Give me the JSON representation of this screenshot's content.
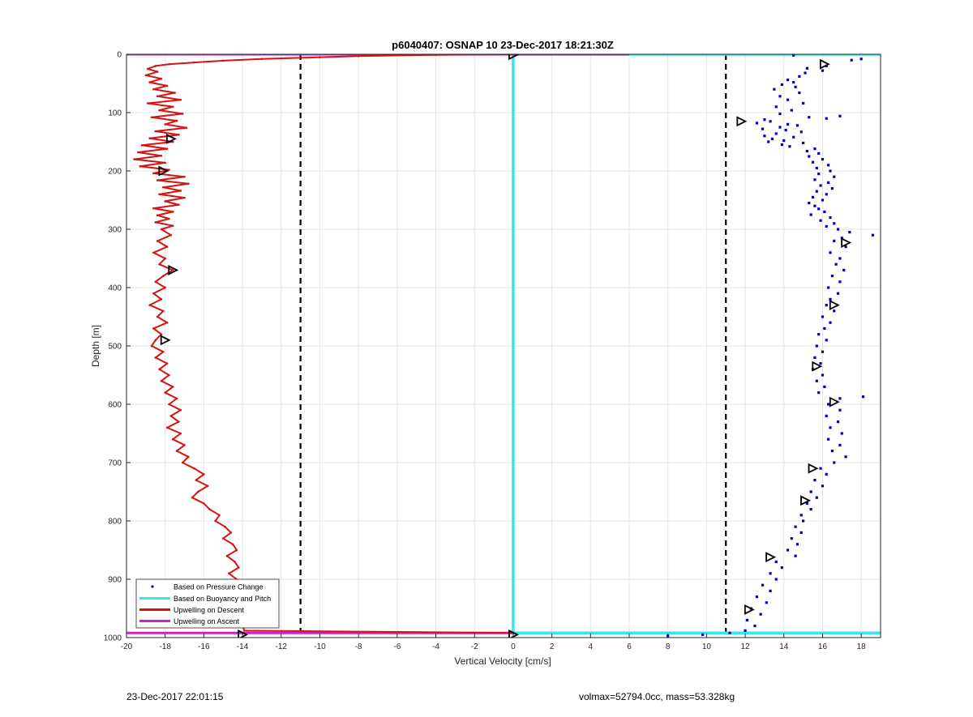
{
  "footer": {
    "timestamp": "23-Dec-2017 22:01:15",
    "vol_mass": "volmax=52794.0cc, mass=53.328kg"
  },
  "colors": {
    "pressure": "#0000cc",
    "buoyancy": "#33e6f0",
    "descent": "#d41414",
    "ascent": "#cc22cc",
    "grid": "#e6e6e6",
    "threshold": "#000000"
  },
  "chart_data": {
    "type": "scatter",
    "title": "p6040407: OSNAP 10 23-Dec-2017 18:21:30Z",
    "xlabel": "Vertical Velocity [cm/s]",
    "ylabel": "Depth [m]",
    "xlim": [
      -20,
      19
    ],
    "ylim": [
      0,
      1000
    ],
    "y_reversed": true,
    "grid": true,
    "x_ticks": [
      -20,
      -18,
      -16,
      -14,
      -12,
      -10,
      -8,
      -6,
      -4,
      -2,
      0,
      2,
      4,
      6,
      8,
      10,
      12,
      14,
      16,
      18
    ],
    "y_ticks": [
      0,
      100,
      200,
      300,
      400,
      500,
      600,
      700,
      800,
      900,
      1000
    ],
    "legend_position": "bottom-left",
    "legend": [
      {
        "label": "Based on Pressure Change",
        "style": "dot",
        "color": "#0000cc"
      },
      {
        "label": "Based on Buoyancy and Pitch",
        "style": "line",
        "color": "#33e6f0"
      },
      {
        "label": "Upwelling on Descent",
        "style": "line",
        "color": "#d41414"
      },
      {
        "label": "Upwelling on Ascent",
        "style": "line",
        "color": "#cc22cc"
      }
    ],
    "threshold_lines": [
      -11,
      11
    ],
    "series": [
      {
        "name": "Based on Pressure Change",
        "style": "points",
        "depth": [
          2,
          8,
          10,
          20,
          24,
          28,
          32,
          38,
          44,
          48,
          52,
          56,
          60,
          66,
          72,
          78,
          84,
          90,
          96,
          102,
          106,
          108,
          110,
          112,
          115,
          118,
          120,
          122,
          125,
          128,
          130,
          133,
          136,
          140,
          142,
          145,
          148,
          150,
          152,
          155,
          158,
          162,
          166,
          170,
          175,
          180,
          185,
          190,
          195,
          200,
          205,
          210,
          215,
          220,
          225,
          230,
          235,
          240,
          245,
          250,
          255,
          260,
          265,
          270,
          275,
          280,
          285,
          290,
          295,
          300,
          305,
          310,
          315,
          320,
          330,
          340,
          350,
          360,
          370,
          380,
          390,
          400,
          410,
          420,
          430,
          440,
          450,
          460,
          470,
          480,
          490,
          500,
          510,
          520,
          530,
          540,
          550,
          560,
          570,
          580,
          587,
          590,
          600,
          610,
          620,
          630,
          640,
          650,
          660,
          670,
          680,
          690,
          700,
          710,
          720,
          730,
          740,
          750,
          760,
          770,
          780,
          790,
          800,
          810,
          820,
          830,
          840,
          850,
          860,
          870,
          880,
          890,
          900,
          910,
          920,
          930,
          940,
          950,
          960,
          970,
          980,
          988,
          992,
          995,
          997
        ],
        "velocity": [
          14.5,
          18,
          17.5,
          16.2,
          15.2,
          16.0,
          15.1,
          14.8,
          14.2,
          14.5,
          13.9,
          14.6,
          13.5,
          14.8,
          13.8,
          14.2,
          15.0,
          13.6,
          14.4,
          13.8,
          16.9,
          15.3,
          16.2,
          13.0,
          13.3,
          12.6,
          14.2,
          14.7,
          13.8,
          12.9,
          14.1,
          14.9,
          13.6,
          13.0,
          14.5,
          13.4,
          14.0,
          13.2,
          15.0,
          13.9,
          14.3,
          15.6,
          15.2,
          15.8,
          15.3,
          16.0,
          15.5,
          16.3,
          15.7,
          16.4,
          15.8,
          16.6,
          15.6,
          16.3,
          15.9,
          16.5,
          15.7,
          16.2,
          15.5,
          16.0,
          15.3,
          15.6,
          15.8,
          16.1,
          15.4,
          16.4,
          15.9,
          16.6,
          16.2,
          16.8,
          17.4,
          18.6,
          17.0,
          16.6,
          17.2,
          16.4,
          16.9,
          16.7,
          17.1,
          16.5,
          16.9,
          16.3,
          16.8,
          16.4,
          16.2,
          16.6,
          16.0,
          16.4,
          16.1,
          15.8,
          16.2,
          15.7,
          16.0,
          15.6,
          15.9,
          15.5,
          16.0,
          15.7,
          16.1,
          15.8,
          18.1,
          16.9,
          16.3,
          16.9,
          16.2,
          16.8,
          16.4,
          17.0,
          16.3,
          16.9,
          16.5,
          17.2,
          16.6,
          15.9,
          16.2,
          15.6,
          16.0,
          15.4,
          15.7,
          15.2,
          15.4,
          14.9,
          15.0,
          14.6,
          14.9,
          14.4,
          14.7,
          14.2,
          14.6,
          13.6,
          13.9,
          13.3,
          13.6,
          12.9,
          13.3,
          12.6,
          13.1,
          12.3,
          12.8,
          12.1,
          12.5,
          12.0,
          11.2,
          9.8,
          8.0
        ]
      },
      {
        "name": "Based on Buoyancy and Pitch",
        "style": "line",
        "depth": [
          0,
          0,
          0,
          1,
          988,
          992,
          992
        ],
        "velocity": [
          6,
          19,
          0,
          0,
          0,
          0,
          19
        ]
      },
      {
        "name": "Upwelling on Descent",
        "style": "line",
        "depth": [
          0,
          1,
          3,
          5,
          8,
          11,
          14,
          17,
          20,
          25,
          30,
          36,
          42,
          48,
          54,
          60,
          66,
          72,
          78,
          84,
          90,
          96,
          102,
          108,
          114,
          120,
          126,
          132,
          138,
          144,
          150,
          156,
          162,
          168,
          174,
          180,
          186,
          192,
          198,
          204,
          210,
          216,
          222,
          228,
          234,
          240,
          246,
          252,
          258,
          264,
          270,
          276,
          282,
          288,
          294,
          300,
          310,
          320,
          330,
          340,
          350,
          360,
          370,
          380,
          390,
          400,
          410,
          420,
          430,
          440,
          450,
          460,
          470,
          480,
          490,
          500,
          510,
          520,
          530,
          540,
          550,
          560,
          570,
          580,
          590,
          600,
          610,
          620,
          630,
          640,
          650,
          660,
          670,
          680,
          690,
          700,
          710,
          720,
          730,
          740,
          750,
          760,
          770,
          780,
          790,
          800,
          810,
          820,
          830,
          840,
          850,
          860,
          870,
          880,
          890,
          900,
          910,
          920,
          930,
          940,
          950,
          960,
          970,
          980,
          988,
          992
        ],
        "velocity": [
          0,
          -4,
          -8,
          -10,
          -13,
          -15,
          -16.5,
          -17.8,
          -18.5,
          -18.9,
          -18.4,
          -19.0,
          -18.2,
          -18.8,
          -17.9,
          -18.6,
          -17.5,
          -18.4,
          -17.2,
          -18.9,
          -17.6,
          -18.3,
          -17.1,
          -18.7,
          -17.4,
          -18.0,
          -16.9,
          -18.5,
          -17.3,
          -18.8,
          -17.6,
          -19.2,
          -17.9,
          -19.4,
          -18.2,
          -19.6,
          -18.0,
          -19.3,
          -17.8,
          -18.6,
          -17.0,
          -18.4,
          -16.8,
          -18.1,
          -17.2,
          -18.3,
          -17.0,
          -18.0,
          -17.3,
          -18.6,
          -17.6,
          -18.4,
          -17.8,
          -18.5,
          -17.6,
          -18.2,
          -17.7,
          -18.4,
          -17.9,
          -18.6,
          -18.0,
          -18.3,
          -17.6,
          -18.1,
          -18.5,
          -18.0,
          -18.6,
          -18.2,
          -18.8,
          -18.1,
          -18.4,
          -17.9,
          -18.6,
          -18.2,
          -18.5,
          -18.7,
          -18.1,
          -18.5,
          -17.9,
          -18.3,
          -17.8,
          -18.2,
          -17.6,
          -18.0,
          -17.4,
          -17.8,
          -17.2,
          -17.7,
          -17.3,
          -17.9,
          -17.2,
          -17.6,
          -17.0,
          -17.4,
          -16.8,
          -17.1,
          -16.5,
          -16.0,
          -16.4,
          -15.8,
          -16.3,
          -16.6,
          -16.0,
          -15.7,
          -15.2,
          -15.4,
          -14.9,
          -14.6,
          -15.0,
          -14.5,
          -14.3,
          -14.8,
          -14.4,
          -14.2,
          -14.7,
          -14.3,
          -13.9,
          -14.4,
          -13.8,
          -14.2,
          -13.9,
          -14.1,
          -13.8,
          -14.0,
          -13.9,
          0
        ]
      },
      {
        "name": "Upwelling on Ascent",
        "style": "line",
        "depth": [
          0,
          0,
          992,
          992
        ],
        "velocity": [
          -20,
          6,
          -20,
          0
        ]
      },
      {
        "name": "markers",
        "style": "triangle",
        "depth": [
          1,
          17,
          115,
          145,
          200,
          370,
          490,
          323,
          430,
          535,
          596,
          710,
          765,
          862,
          952,
          995,
          995
        ],
        "velocity": [
          0,
          16.1,
          11.8,
          -17.7,
          -18.1,
          -17.6,
          -18.0,
          17.2,
          16.6,
          15.7,
          16.6,
          15.5,
          15.1,
          13.3,
          12.2,
          -14.0,
          0
        ]
      }
    ]
  }
}
